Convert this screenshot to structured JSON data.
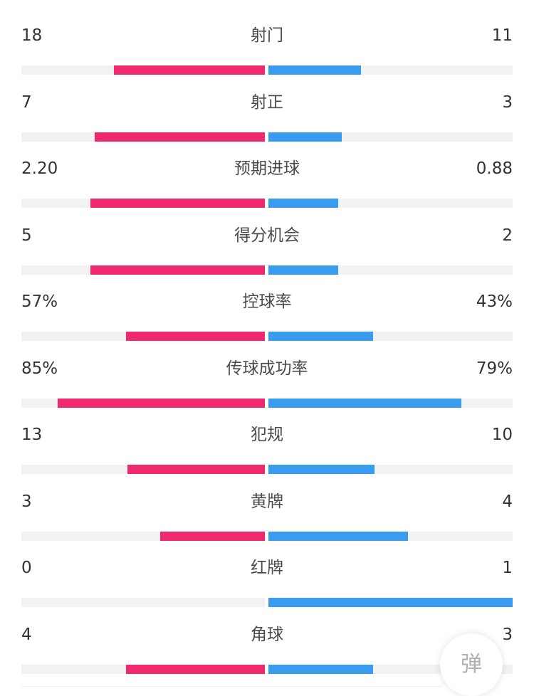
{
  "colors": {
    "home": "#f0296e",
    "away": "#3a9cf0",
    "track": "#f2f2f2"
  },
  "stats": [
    {
      "label": "射门",
      "home": "18",
      "away": "11",
      "home_frac": 0.62,
      "away_frac": 0.38
    },
    {
      "label": "射正",
      "home": "7",
      "away": "3",
      "home_frac": 0.7,
      "away_frac": 0.3
    },
    {
      "label": "预期进球",
      "home": "2.20",
      "away": "0.88",
      "home_frac": 0.715,
      "away_frac": 0.285
    },
    {
      "label": "得分机会",
      "home": "5",
      "away": "2",
      "home_frac": 0.715,
      "away_frac": 0.285
    },
    {
      "label": "控球率",
      "home": "57%",
      "away": "43%",
      "home_frac": 0.57,
      "away_frac": 0.43
    },
    {
      "label": "传球成功率",
      "home": "85%",
      "away": "79%",
      "home_frac": 0.85,
      "away_frac": 0.79
    },
    {
      "label": "犯规",
      "home": "13",
      "away": "10",
      "home_frac": 0.565,
      "away_frac": 0.435
    },
    {
      "label": "黄牌",
      "home": "3",
      "away": "4",
      "home_frac": 0.43,
      "away_frac": 0.57
    },
    {
      "label": "红牌",
      "home": "0",
      "away": "1",
      "home_frac": 0.0,
      "away_frac": 1.0
    },
    {
      "label": "角球",
      "home": "4",
      "away": "3",
      "home_frac": 0.57,
      "away_frac": 0.43
    }
  ],
  "danmu_button": {
    "label": "弹"
  }
}
